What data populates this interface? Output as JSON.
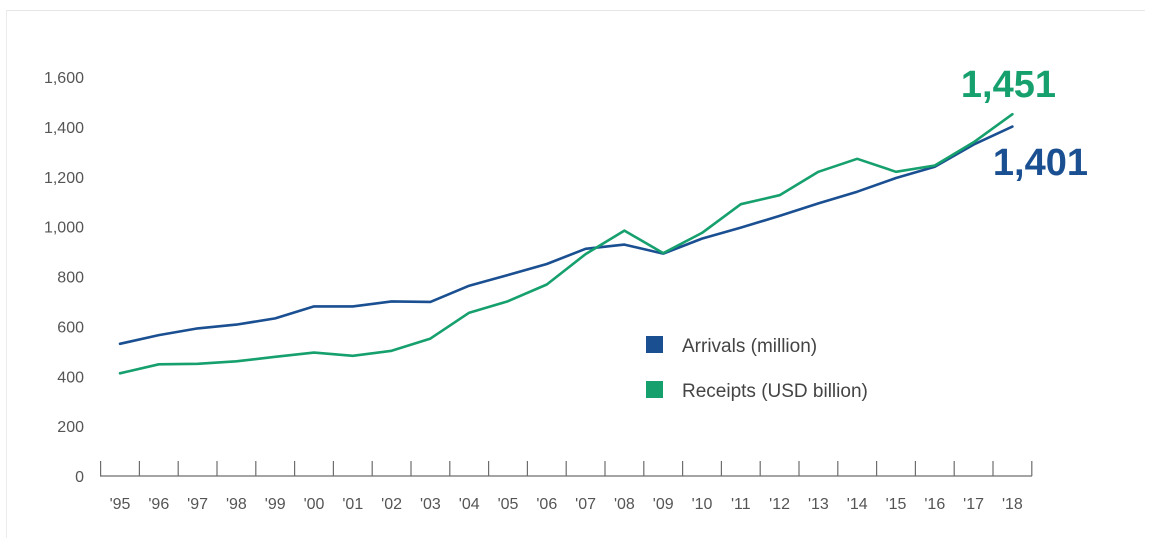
{
  "chart_data": {
    "type": "line",
    "title": "",
    "xlabel": "",
    "ylabel": "",
    "categories": [
      "'95",
      "'96",
      "'97",
      "'98",
      "'99",
      "'00",
      "'01",
      "'02",
      "'03",
      "'04",
      "'05",
      "'06",
      "'07",
      "'08",
      "'09",
      "'10",
      "'11",
      "'12",
      "'13",
      "'14",
      "'15",
      "'16",
      "'17",
      "'18"
    ],
    "ylim": [
      0,
      1600
    ],
    "yticks": [
      0,
      200,
      400,
      600,
      800,
      1000,
      1200,
      1400,
      1600
    ],
    "ytick_labels": [
      "0",
      "200",
      "400",
      "600",
      "800",
      "1,000",
      "1,200",
      "1,400",
      "1,600"
    ],
    "grid": false,
    "legend_position": "center-right",
    "series": [
      {
        "name": "Arrivals (million)",
        "color": "#1a4f91",
        "values": [
          530,
          565,
          592,
          607,
          632,
          680,
          680,
          700,
          698,
          763,
          806,
          850,
          911,
          928,
          892,
          952,
          996,
          1043,
          1093,
          1140,
          1195,
          1240,
          1329,
          1401
        ],
        "end_label": "1,401"
      },
      {
        "name": "Receipts (USD billion)",
        "color": "#16a06e",
        "values": [
          412,
          448,
          450,
          460,
          478,
          495,
          482,
          502,
          551,
          655,
          701,
          768,
          890,
          984,
          894,
          975,
          1090,
          1126,
          1220,
          1272,
          1220,
          1245,
          1338,
          1451
        ],
        "end_label": "1,451"
      }
    ]
  }
}
